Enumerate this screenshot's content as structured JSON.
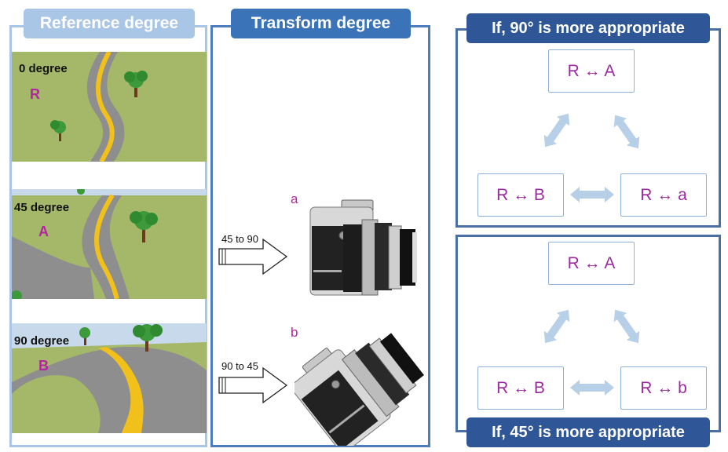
{
  "headers": {
    "reference": "Reference degree",
    "transform": "Transform degree",
    "if_top": "If, 90° is more appropriate",
    "if_bottom": "If, 45° is more appropriate"
  },
  "reference_images": [
    {
      "degree_label": "0 degree",
      "letter": "R"
    },
    {
      "degree_label": "45 degree",
      "letter": "A"
    },
    {
      "degree_label": "90 degree",
      "letter": "B"
    }
  ],
  "transforms": [
    {
      "arrow_label": "45 to 90",
      "camera_label": "a"
    },
    {
      "arrow_label": "90 to 45",
      "camera_label": "b"
    }
  ],
  "top_relations": {
    "top": "R ↔ A",
    "left": "R ↔ B",
    "right": "R ↔ a"
  },
  "bottom_relations": {
    "top": "R ↔ A",
    "left": "R ↔ B",
    "right": "R ↔ b"
  },
  "colors": {
    "grass": "#a5b86a",
    "road": "#8e8e8e",
    "road_line": "#f2c01a",
    "sky": "#c7d9ea",
    "accent": "#b2259f",
    "relation_arrow": "#b8cfe8"
  }
}
